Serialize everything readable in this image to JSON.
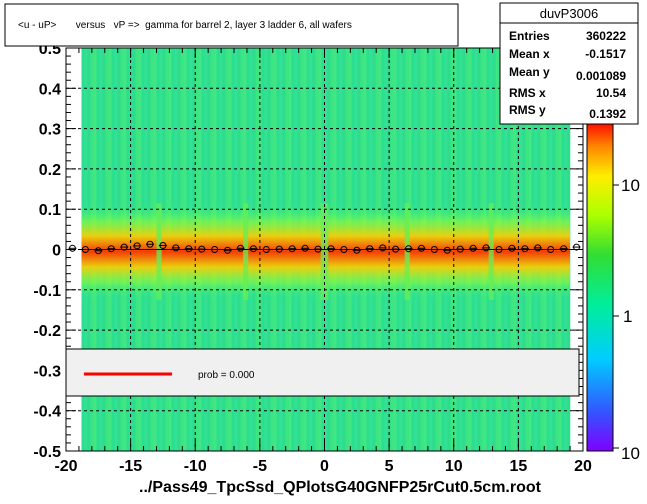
{
  "title": "<u - uP>       versus   vP =>  gamma for barrel 2, layer 3 ladder 6, all wafers",
  "footer": "../Pass49_TpcSsd_QPlotsG40GNFP25rCut0.5cm.root",
  "stats": {
    "name": "duvP3006",
    "rows": [
      {
        "label": "Entries",
        "value": "360222"
      },
      {
        "label": "Mean x",
        "value": "-0.1517"
      },
      {
        "label": "Mean y",
        "value": "0.001089"
      },
      {
        "label": "RMS x",
        "value": "10.54"
      },
      {
        "label": "RMS y",
        "value": "0.1392"
      }
    ]
  },
  "legend": {
    "entry": "prob = 0.000",
    "line_color": "#ff0000"
  },
  "colorbar": {
    "tick_labels": [
      "10",
      "1",
      "10"
    ]
  },
  "chart_data": {
    "type": "heatmap",
    "title": "<u - uP>       versus   vP =>  gamma for barrel 2, layer 3 ladder 6, all wafers",
    "xlabel": "",
    "ylabel": "",
    "xlim": [
      -20,
      20
    ],
    "ylim": [
      -0.5,
      0.5
    ],
    "x_ticks": [
      -20,
      -15,
      -10,
      -5,
      0,
      5,
      10,
      15,
      20
    ],
    "x_tick_labels": [
      "-20",
      "-15",
      "-10",
      "-5",
      "0",
      "5",
      "10",
      "15",
      "20"
    ],
    "y_ticks": [
      -0.5,
      -0.4,
      -0.3,
      -0.2,
      -0.1,
      0,
      0.1,
      0.2,
      0.3,
      0.4,
      0.5
    ],
    "y_tick_labels": [
      "-0.5",
      "-0.4",
      "-0.3",
      "-0.2",
      "-0.1",
      "0",
      "0.1",
      "0.2",
      "0.3",
      "0.4",
      "0.5"
    ],
    "grid": true,
    "gap_bands_x": [
      [
        -13.0,
        -12.6
      ],
      [
        -6.3,
        -5.9
      ],
      [
        -0.3,
        0.3
      ],
      [
        6.2,
        6.6
      ],
      [
        12.7,
        13.1
      ]
    ],
    "profile": {
      "x": [
        -19.5,
        -18.5,
        -17.5,
        -16.5,
        -15.5,
        -14.5,
        -13.5,
        -12.5,
        -11.5,
        -10.5,
        -9.5,
        -8.5,
        -7.5,
        -6.5,
        -5.5,
        -4.5,
        -3.5,
        -2.5,
        -1.5,
        -0.5,
        0.5,
        1.5,
        2.5,
        3.5,
        4.5,
        5.5,
        6.5,
        7.5,
        8.5,
        9.5,
        10.5,
        11.5,
        12.5,
        13.5,
        14.5,
        15.5,
        16.5,
        17.5,
        18.5,
        19.5
      ],
      "y": [
        0.003,
        0.0,
        -0.003,
        0.002,
        0.006,
        0.009,
        0.013,
        0.01,
        0.004,
        0.002,
        0.001,
        0.0,
        -0.002,
        0.003,
        0.002,
        0.0,
        0.001,
        0.002,
        0.003,
        0.001,
        0.002,
        0.0,
        -0.002,
        0.002,
        0.004,
        0.001,
        0.002,
        0.003,
        0.0,
        -0.002,
        0.001,
        0.003,
        0.004,
        0.0,
        0.003,
        0.002,
        0.004,
        0.0,
        0.002,
        0.006
      ]
    },
    "fit": {
      "x": [
        -19,
        19
      ],
      "y": [
        0.0,
        0.0
      ],
      "color": "#000000"
    }
  }
}
